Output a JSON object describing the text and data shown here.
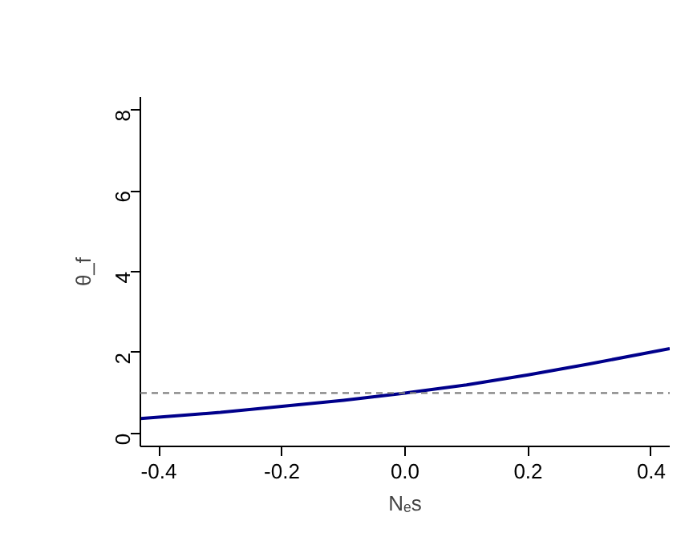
{
  "chart_data": {
    "type": "line",
    "xlabel": "Nₑs",
    "ylabel": "θ_f",
    "xlim": [
      -0.43,
      0.43
    ],
    "ylim": [
      -0.32,
      8.32
    ],
    "xticks": [
      {
        "value": -0.4,
        "label": "-0.4"
      },
      {
        "value": -0.2,
        "label": "-0.2"
      },
      {
        "value": 0,
        "label": "0.0"
      },
      {
        "value": 0.2,
        "label": "0.2"
      },
      {
        "value": 0.4,
        "label": "0.4"
      }
    ],
    "yticks": [
      0,
      2,
      4,
      6,
      8
    ],
    "grid": false,
    "legend": false,
    "series": [
      {
        "color": "#00008b",
        "x": [
          -0.43,
          -0.3,
          -0.2,
          -0.1,
          0,
          0.1,
          0.2,
          0.3,
          0.43
        ],
        "values": [
          0.37,
          0.52,
          0.67,
          0.82,
          1.0,
          1.2,
          1.45,
          1.72,
          2.1
        ]
      }
    ],
    "ref_lines": [
      {
        "axis": "y",
        "value": 1,
        "color": "#808080",
        "line_style": "dashed"
      }
    ]
  }
}
